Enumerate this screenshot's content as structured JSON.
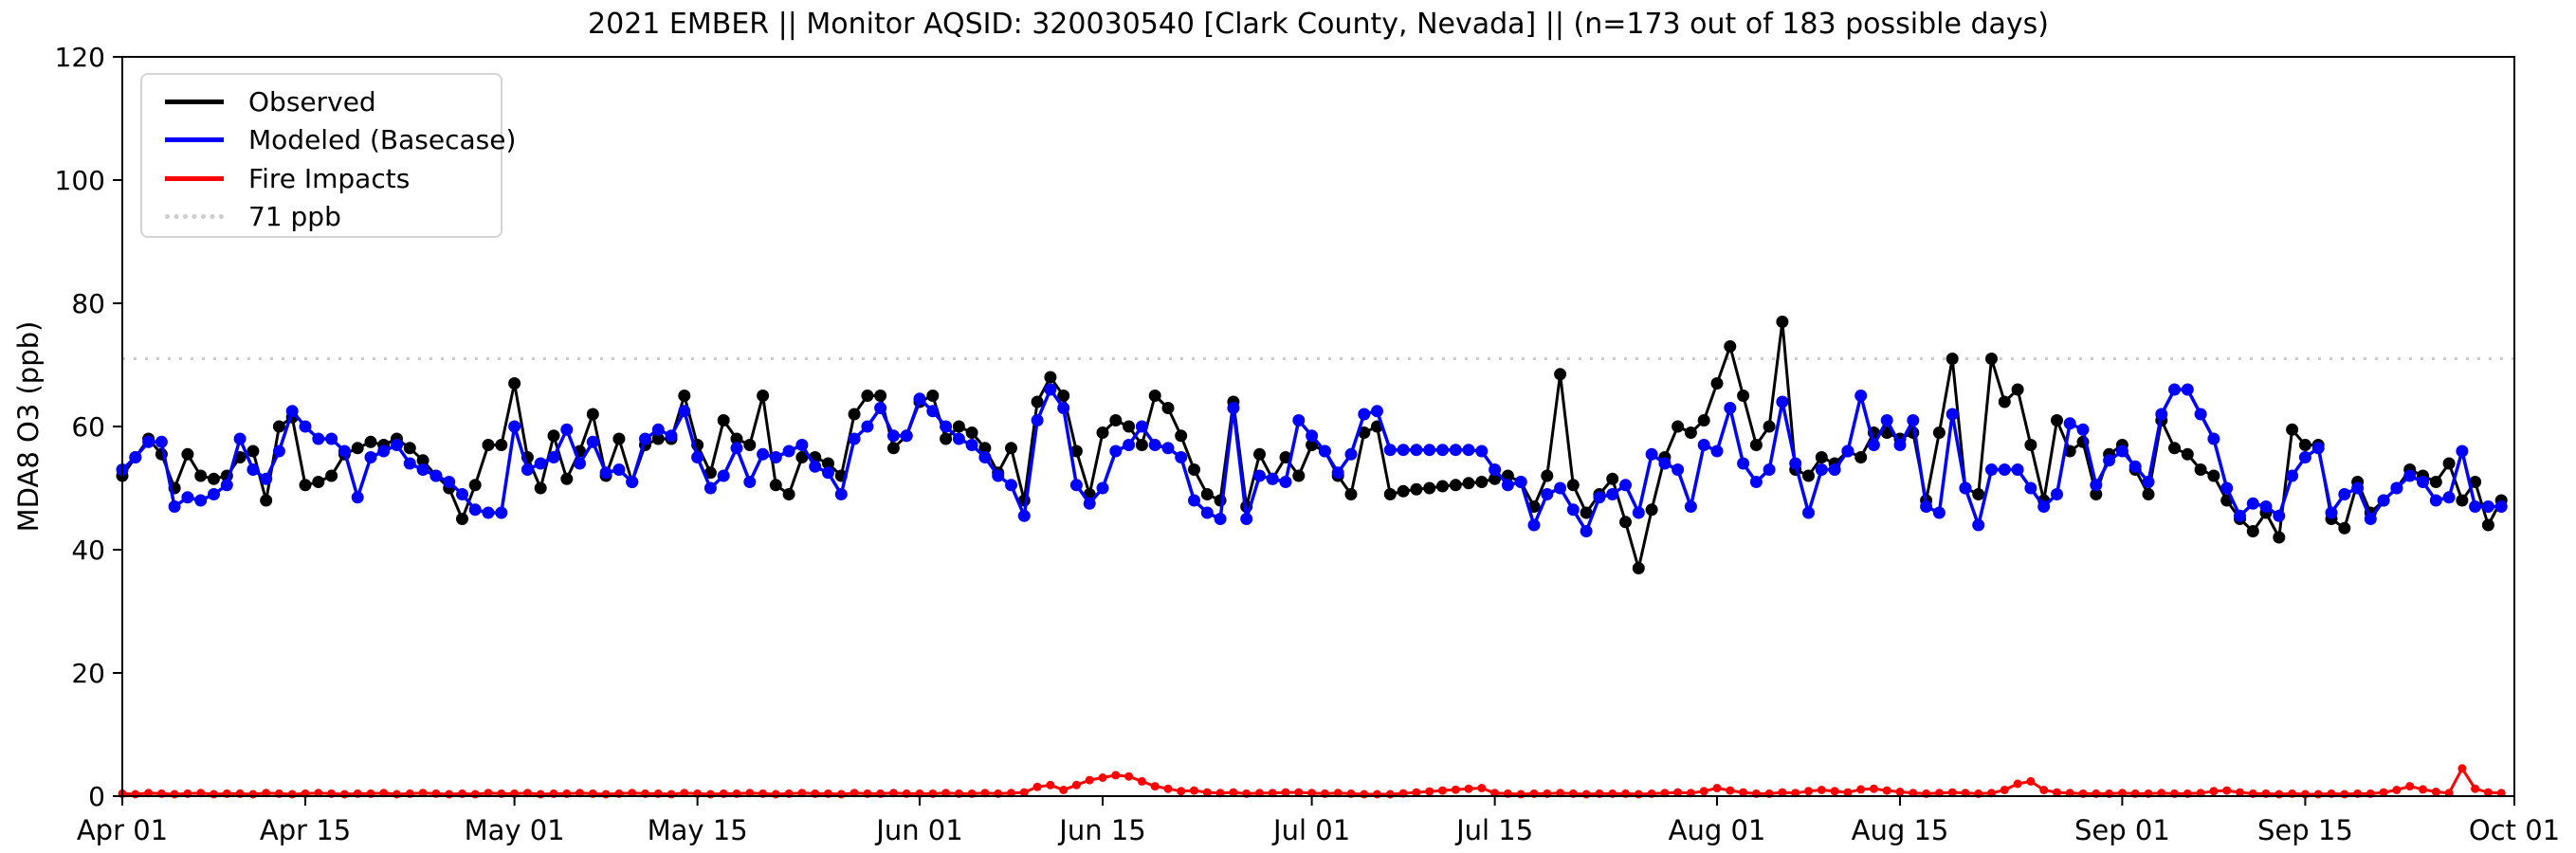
{
  "title": "2021 EMBER || Monitor AQSID: 320030540 [Clark County, Nevada] || (n=173 out of 183 possible days)",
  "axes": {
    "ylabel": "MDA8 O3 (ppb)",
    "ylim": [
      0,
      120
    ],
    "yticks": [
      0,
      20,
      40,
      60,
      80,
      100,
      120
    ],
    "x_tick_labels": [
      "Apr 01",
      "Apr 15",
      "May 01",
      "May 15",
      "Jun 01",
      "Jun 15",
      "Jul 01",
      "Jul 15",
      "Aug 01",
      "Aug 15",
      "Sep 01",
      "Sep 15",
      "Oct 01"
    ],
    "x_tick_days": [
      0,
      14,
      30,
      44,
      61,
      75,
      91,
      105,
      122,
      136,
      153,
      167,
      183
    ]
  },
  "legend": {
    "items": [
      {
        "label": "Observed",
        "color": "#000000",
        "style": "solid"
      },
      {
        "label": "Modeled (Basecase)",
        "color": "#0000ff",
        "style": "solid"
      },
      {
        "label": "Fire Impacts",
        "color": "#ff0000",
        "style": "solid"
      },
      {
        "label": "71 ppb",
        "color": "#cdcdcd",
        "style": "dotted"
      }
    ]
  },
  "reference_line": {
    "value": 71,
    "label": "71 ppb",
    "color": "#cdcdcd",
    "style": "dotted"
  },
  "chart_data": {
    "type": "line",
    "title": "2021 EMBER || Monitor AQSID: 320030540 [Clark County, Nevada] || (n=173 out of 183 possible days)",
    "xlabel": "",
    "ylabel": "MDA8 O3 (ppb)",
    "ylim": [
      0,
      120
    ],
    "grid": false,
    "legend_position": "upper left",
    "x_start_date": "Apr 01",
    "x_end_date": "Sep 30",
    "x_axis_end_label": "Oct 01",
    "n_days_axis": 183,
    "n_observed_days_note": "n=173 out of 183 possible days",
    "x_tick_labels": [
      "Apr 01",
      "Apr 15",
      "May 01",
      "May 15",
      "Jun 01",
      "Jun 15",
      "Jul 01",
      "Jul 15",
      "Aug 01",
      "Aug 15",
      "Sep 01",
      "Sep 15",
      "Oct 01"
    ],
    "x_tick_days": [
      0,
      14,
      30,
      44,
      61,
      75,
      91,
      105,
      122,
      136,
      153,
      167,
      183
    ],
    "reference_value": 71,
    "series": [
      {
        "name": "Observed",
        "color": "#000000",
        "marker": "circle",
        "values": [
          52,
          55,
          58,
          55.5,
          50,
          55.5,
          52,
          51.5,
          52,
          55,
          56,
          48,
          60,
          61.5,
          50.5,
          51,
          52,
          55.5,
          56.5,
          57.5,
          57,
          58,
          56.5,
          54.5,
          52,
          50,
          45,
          50.5,
          57,
          57,
          67,
          55,
          50,
          58.5,
          51.5,
          56,
          62,
          52,
          58,
          51,
          57,
          58,
          58,
          65,
          57,
          52.5,
          61,
          58,
          57,
          65,
          50.5,
          49,
          55,
          55,
          54,
          52,
          62,
          65,
          65,
          56.5,
          58.5,
          64,
          65,
          58,
          60,
          59,
          56.5,
          52.5,
          56.5,
          48,
          64,
          68,
          65,
          56,
          49,
          59,
          61,
          60,
          57,
          65,
          63,
          58.5,
          53,
          49,
          48,
          64,
          47,
          55.5,
          51.5,
          55,
          52,
          57,
          56,
          52,
          49,
          59,
          60,
          49,
          49.5,
          49.8,
          50,
          50.3,
          50.5,
          50.8,
          51,
          51.5,
          52,
          51,
          47,
          52,
          68.5,
          50.5,
          46,
          49,
          51.5,
          44.5,
          37,
          46.5,
          55,
          60,
          59,
          61,
          67,
          73,
          65,
          57,
          60,
          77,
          53,
          52,
          55,
          54,
          56,
          55,
          59,
          59,
          58,
          59,
          48,
          59,
          71,
          50,
          49,
          71,
          64,
          66,
          57,
          48,
          61,
          56,
          57.5,
          49,
          55.5,
          57,
          53,
          49,
          61,
          56.5,
          55.5,
          53,
          52,
          48,
          45,
          43,
          46,
          42,
          59.5,
          57,
          57,
          45,
          43.5,
          51,
          46,
          48,
          50,
          53,
          52,
          51,
          54,
          48,
          51,
          44,
          48
        ]
      },
      {
        "name": "Modeled (Basecase)",
        "color": "#0000ff",
        "marker": "circle",
        "values": [
          53,
          55,
          57.5,
          57.5,
          47,
          48.5,
          48,
          49,
          50.5,
          58,
          53,
          51.5,
          56,
          62.5,
          60,
          58,
          58,
          56,
          48.5,
          55,
          56,
          57,
          54,
          53,
          52,
          51,
          49,
          46.5,
          46,
          46,
          60,
          53,
          54,
          55,
          59.5,
          54,
          57.5,
          52.5,
          53,
          51,
          58,
          59.5,
          58.5,
          62.5,
          55,
          50,
          52,
          56.5,
          51,
          55.5,
          55,
          56,
          57,
          53.5,
          52.5,
          49,
          58,
          60,
          63,
          58.5,
          58.5,
          64.5,
          62.5,
          60,
          58,
          57,
          55,
          52,
          50.5,
          45.5,
          61,
          66,
          63,
          50.5,
          47.5,
          50,
          56,
          57,
          60,
          57,
          56.5,
          55,
          48,
          46,
          45,
          63,
          45,
          52,
          51.5,
          51,
          61,
          58.5,
          56,
          52.5,
          55.5,
          62,
          62.5,
          56.2,
          56.2,
          56.2,
          56.2,
          56.2,
          56.2,
          56.2,
          56,
          53,
          50.5,
          51,
          44,
          49,
          50,
          46.5,
          43,
          48.5,
          49,
          50.5,
          46,
          55.5,
          54,
          53,
          47,
          57,
          56,
          63,
          54,
          51,
          53,
          64,
          54,
          46,
          53,
          53,
          56,
          65,
          57,
          61,
          57,
          61,
          47,
          46,
          62,
          50,
          44,
          53,
          53,
          53,
          50,
          47,
          49,
          60.5,
          59.5,
          50.5,
          54.5,
          56,
          53.5,
          51,
          62,
          66,
          66,
          62,
          58,
          50,
          45.5,
          47.5,
          47,
          45.5,
          52,
          55,
          56.5,
          46,
          49,
          50,
          45,
          48,
          50,
          52,
          51,
          48,
          48.5,
          56,
          47,
          47,
          47
        ]
      },
      {
        "name": "Fire Impacts",
        "color": "#ff0000",
        "marker": "circle",
        "values": [
          0.4,
          0.3,
          0.5,
          0.4,
          0.3,
          0.4,
          0.5,
          0.3,
          0.4,
          0.4,
          0.3,
          0.5,
          0.4,
          0.3,
          0.4,
          0.5,
          0.4,
          0.3,
          0.4,
          0.4,
          0.5,
          0.3,
          0.4,
          0.5,
          0.4,
          0.3,
          0.4,
          0.3,
          0.5,
          0.4,
          0.4,
          0.5,
          0.3,
          0.4,
          0.4,
          0.5,
          0.4,
          0.3,
          0.4,
          0.5,
          0.4,
          0.4,
          0.3,
          0.5,
          0.4,
          0.3,
          0.4,
          0.4,
          0.5,
          0.4,
          0.3,
          0.4,
          0.5,
          0.4,
          0.4,
          0.3,
          0.5,
          0.4,
          0.4,
          0.5,
          0.4,
          0.4,
          0.4,
          0.5,
          0.4,
          0.4,
          0.5,
          0.4,
          0.5,
          0.6,
          1.5,
          1.8,
          1.0,
          1.8,
          2.6,
          3.0,
          3.4,
          3.2,
          2.4,
          1.6,
          1.2,
          0.8,
          0.9,
          0.6,
          0.5,
          0.6,
          0.4,
          0.5,
          0.5,
          0.6,
          0.6,
          0.5,
          0.4,
          0.5,
          0.4,
          0.3,
          0.3,
          0.3,
          0.45,
          0.6,
          0.75,
          0.9,
          1.05,
          1.2,
          1.3,
          0.5,
          0.4,
          0.3,
          0.4,
          0.4,
          0.5,
          0.4,
          0.3,
          0.4,
          0.4,
          0.4,
          0.3,
          0.4,
          0.5,
          0.6,
          0.5,
          0.8,
          1.3,
          0.9,
          0.6,
          0.4,
          0.4,
          0.6,
          0.5,
          0.8,
          1.0,
          0.8,
          0.6,
          1.1,
          1.2,
          0.9,
          0.7,
          0.5,
          0.4,
          0.5,
          0.6,
          0.5,
          0.4,
          0.5,
          1.0,
          2.0,
          2.4,
          1.0,
          0.6,
          0.5,
          0.4,
          0.4,
          0.4,
          0.5,
          0.4,
          0.4,
          0.5,
          0.4,
          0.4,
          0.5,
          0.8,
          0.9,
          0.6,
          0.4,
          0.4,
          0.3,
          0.4,
          0.3,
          0.3,
          0.4,
          0.3,
          0.4,
          0.4,
          0.6,
          1.0,
          1.6,
          1.1,
          0.7,
          0.5,
          4.5,
          1.2,
          0.6,
          0.5
        ]
      }
    ]
  }
}
